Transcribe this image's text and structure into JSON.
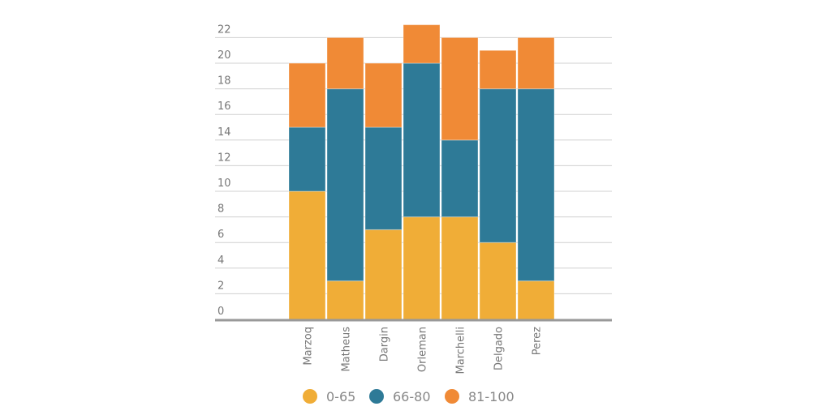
{
  "chart_data": {
    "type": "bar",
    "stacked": true,
    "title": "",
    "xlabel": "",
    "ylabel": "",
    "ylim": [
      0,
      22
    ],
    "yticks": [
      0,
      2,
      4,
      6,
      8,
      10,
      12,
      14,
      16,
      18,
      20,
      22
    ],
    "grid": true,
    "legend_position": "bottom",
    "categories": [
      "Marzoq",
      "Matheus",
      "Dargin",
      "Orleman",
      "Marchelli",
      "Delgado",
      "Perez"
    ],
    "series": [
      {
        "name": "0-65",
        "color": "#f0ad37",
        "values": [
          10,
          3,
          7,
          8,
          8,
          6,
          3
        ]
      },
      {
        "name": "66-80",
        "color": "#2e7a97",
        "values": [
          5,
          15,
          8,
          12,
          6,
          12,
          15
        ]
      },
      {
        "name": "81-100",
        "color": "#f08a36",
        "values": [
          5,
          4,
          5,
          3,
          8,
          3,
          4
        ]
      }
    ]
  }
}
